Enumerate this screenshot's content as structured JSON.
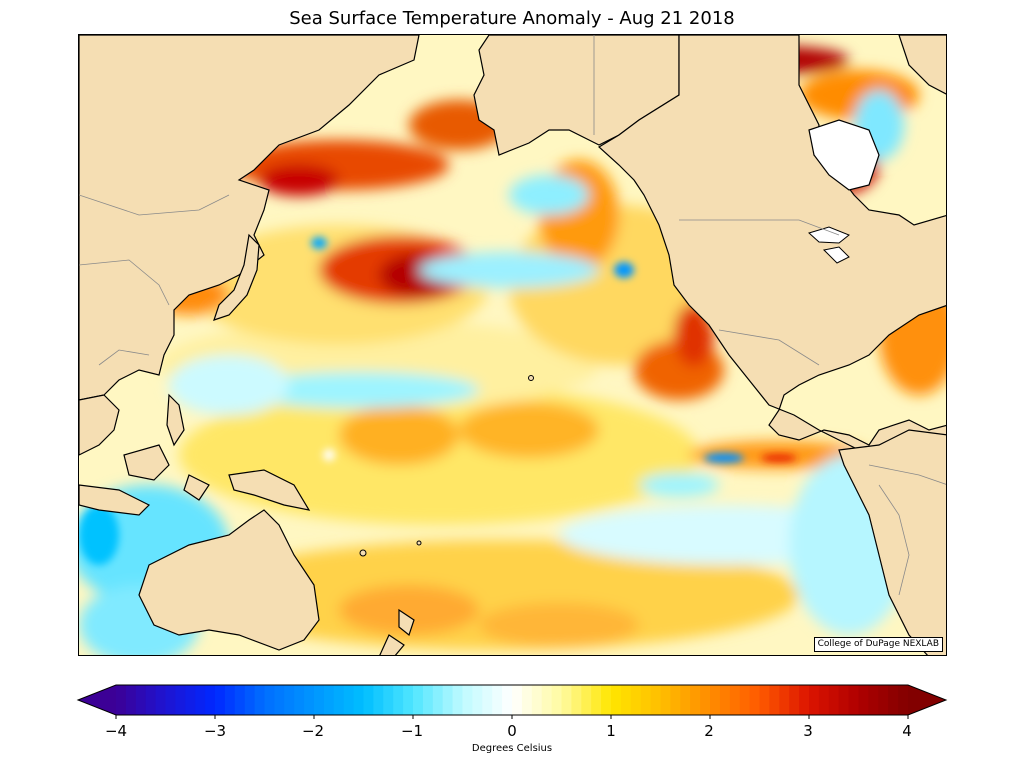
{
  "title": "Sea Surface Temperature Anomaly - Aug 21 2018",
  "credit": "College of DuPage NEXLAB",
  "colorbar": {
    "label": "Degrees Celsius",
    "ticks": [
      "−4",
      "−3",
      "−2",
      "−1",
      "0",
      "1",
      "2",
      "3",
      "4"
    ],
    "min": -4,
    "max": 4,
    "extend": "both"
  },
  "colors": {
    "land": "#f5deb3",
    "coast": "#000000",
    "border": "#8a8a8a"
  }
}
